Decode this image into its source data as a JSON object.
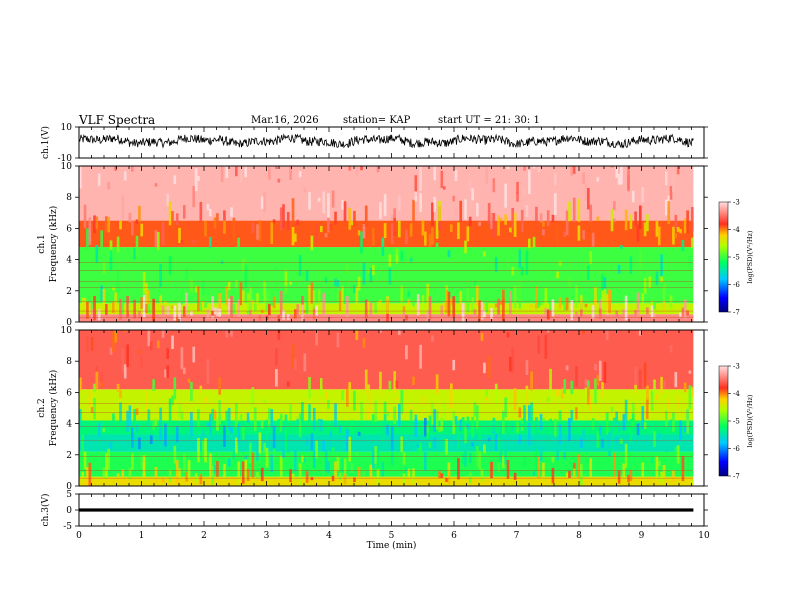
{
  "header": {
    "title": "VLF Spectra",
    "date": "Mar.16, 2026",
    "station": "station= KAP",
    "start_ut": "start  UT =   21: 30: 1"
  },
  "chart_data": [
    {
      "type": "line",
      "name": "ch1-waveform",
      "ylabel": "ch.1(V)",
      "ylim": [
        -10,
        10
      ],
      "yticks": [
        10,
        -10
      ],
      "xlim": [
        0,
        10
      ],
      "data_extent_min": 9.83,
      "signal_range_v": [
        -3,
        5
      ]
    },
    {
      "type": "heatmap",
      "name": "ch1-spectrogram",
      "ylabel_line1": "ch.1",
      "ylabel_line2": "Frequency (kHz)",
      "ylim": [
        0,
        10
      ],
      "yticks": [
        0,
        2,
        4,
        6,
        8,
        10
      ],
      "xlim": [
        0,
        10
      ],
      "data_extent_min": 9.83,
      "color_bands_khz": [
        {
          "from": 0,
          "to": 0.5,
          "log_psd": -3.4
        },
        {
          "from": 0.5,
          "to": 1.2,
          "log_psd": -4.5
        },
        {
          "from": 1.2,
          "to": 4.8,
          "log_psd": -5.0
        },
        {
          "from": 4.8,
          "to": 6.5,
          "log_psd": -3.9
        },
        {
          "from": 6.5,
          "to": 10,
          "log_psd": -3.2
        }
      ],
      "colorbar": {
        "label": "log(PSD)(V²/Hz)",
        "ticks": [
          -3,
          -4,
          -5,
          -6,
          -7
        ],
        "range": [
          -7,
          -3
        ]
      }
    },
    {
      "type": "heatmap",
      "name": "ch2-spectrogram",
      "ylabel_line1": "ch.2",
      "ylabel_line2": "Frequency (kHz)",
      "ylim": [
        0,
        10
      ],
      "yticks": [
        0,
        2,
        4,
        6,
        8,
        10
      ],
      "xlim": [
        0,
        10
      ],
      "data_extent_min": 9.83,
      "color_bands_khz": [
        {
          "from": 0,
          "to": 0.6,
          "log_psd": -4.3
        },
        {
          "from": 0.6,
          "to": 2.2,
          "log_psd": -5.1
        },
        {
          "from": 2.2,
          "to": 3.3,
          "log_psd": -5.5
        },
        {
          "from": 3.3,
          "to": 4.2,
          "log_psd": -5.3
        },
        {
          "from": 4.2,
          "to": 6.2,
          "log_psd": -4.5
        },
        {
          "from": 6.2,
          "to": 10,
          "log_psd": -3.6
        }
      ],
      "colorbar": {
        "label": "log(PSD)(V²/Hz)",
        "ticks": [
          -3,
          -4,
          -5,
          -6,
          -7
        ],
        "range": [
          -7,
          -3
        ]
      }
    },
    {
      "type": "line",
      "name": "ch3-waveform",
      "ylabel": "ch.3(V)",
      "ylim": [
        -5,
        5
      ],
      "yticks": [
        5,
        0,
        -5
      ],
      "xlim": [
        0,
        10
      ],
      "data_extent_min": 9.83,
      "signal_range_v": [
        -0.5,
        0.5
      ],
      "xlabel": "Time  (min)",
      "xticks": [
        0,
        1,
        2,
        3,
        4,
        5,
        6,
        7,
        8,
        9,
        10
      ]
    }
  ]
}
